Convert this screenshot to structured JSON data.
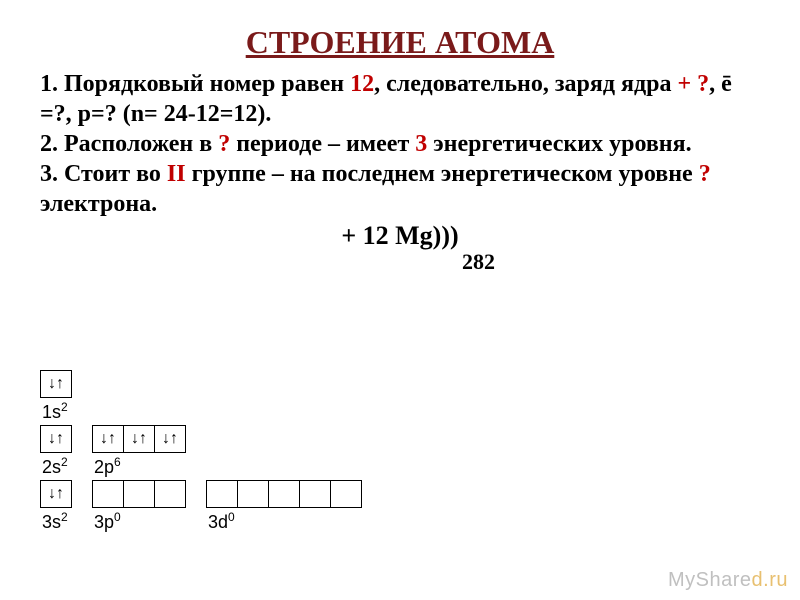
{
  "title": {
    "text": "СТРОЕНИЕ АТОМА",
    "color": "#7a1a1a"
  },
  "lines": [
    {
      "segments": [
        {
          "t": "1. Порядковый номер равен ",
          "c": "#000000",
          "b": true
        },
        {
          "t": "12",
          "c": "#c00000",
          "b": true
        },
        {
          "t": ", следовательно, заряд ядра ",
          "c": "#000000",
          "b": true
        },
        {
          "t": "+ ?",
          "c": "#c00000",
          "b": true
        },
        {
          "t": ", ē =?, p=? (n= 24-12=12).",
          "c": "#000000",
          "b": true
        }
      ]
    },
    {
      "segments": [
        {
          "t": "2. Расположен в ",
          "c": "#000000",
          "b": true
        },
        {
          "t": "?",
          "c": "#c00000",
          "b": true
        },
        {
          "t": " периоде – имеет ",
          "c": "#000000",
          "b": true
        },
        {
          "t": "3",
          "c": "#c00000",
          "b": true
        },
        {
          "t": " энергетических уровня.",
          "c": "#000000",
          "b": true
        }
      ]
    },
    {
      "segments": [
        {
          "t": "3. Стоит во ",
          "c": "#000000",
          "b": true
        },
        {
          "t": "II",
          "c": "#c00000",
          "b": true
        },
        {
          "t": " группе – на последнем энергетическом уровне ",
          "c": "#000000",
          "b": true
        },
        {
          "t": "?",
          "c": "#c00000",
          "b": true
        },
        {
          "t": " электрона.",
          "c": "#000000",
          "b": true
        }
      ]
    }
  ],
  "equation": {
    "main": "+ 12 Mg)))",
    "sub": "282",
    "color": "#000000"
  },
  "orbitals": {
    "cell_border": "#000000",
    "arrow_pair": "↓↑",
    "rows": [
      {
        "blocks": [
          {
            "label": "1s",
            "sup": "2",
            "cells": [
              "↓↑"
            ]
          }
        ]
      },
      {
        "blocks": [
          {
            "label": "2s",
            "sup": "2",
            "cells": [
              "↓↑"
            ]
          },
          {
            "label": "2p",
            "sup": "6",
            "cells": [
              "↓↑",
              "↓↑",
              "↓↑"
            ]
          }
        ]
      },
      {
        "blocks": [
          {
            "label": "3s",
            "sup": "2",
            "cells": [
              "↓↑"
            ]
          },
          {
            "label": "3p",
            "sup": "0",
            "cells": [
              "",
              "",
              ""
            ]
          },
          {
            "label": "3d",
            "sup": "0",
            "cells": [
              "",
              "",
              "",
              "",
              ""
            ]
          }
        ]
      }
    ]
  },
  "watermark": {
    "left": "MyShare",
    "right": "d.ru"
  }
}
